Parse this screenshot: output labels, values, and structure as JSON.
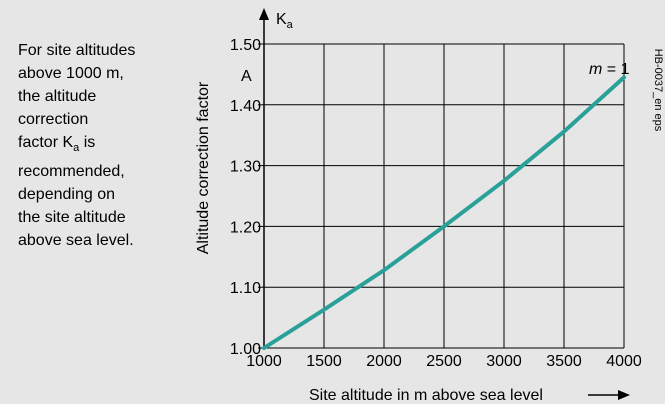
{
  "description": {
    "line1": "For site altitudes",
    "line2": "above 1000 m,",
    "line3": "the altitude",
    "line4": "correction",
    "line5_pre": "factor K",
    "line5_sub": "a",
    "line5_post": " is",
    "line6": "recommended,",
    "line7": "depending on",
    "line8": "the site altitude",
    "line9": "above sea level."
  },
  "watermark": "HB-0037_en eps",
  "colors": {
    "curve": "#2aa198",
    "grid": "#000000",
    "background": "#e6e6e6"
  },
  "chart_data": {
    "type": "line",
    "y_top_label_main": "K",
    "y_top_label_sub": "a",
    "ylabel": "Altitude correction factor",
    "xlabel": "Site altitude in m above sea level",
    "annotation_A": "A",
    "series_label_italic": "m",
    "series_label_rest": " = 1",
    "xlim": [
      1000,
      4000
    ],
    "ylim": [
      1.0,
      1.5
    ],
    "x_ticks": [
      1000,
      1500,
      2000,
      2500,
      3000,
      3500,
      4000
    ],
    "x_tick_labels": [
      "1000",
      "1500",
      "2000",
      "2500",
      "3000",
      "3500",
      "4000"
    ],
    "y_ticks": [
      1.0,
      1.1,
      1.2,
      1.3,
      1.4,
      1.5
    ],
    "y_tick_labels": [
      "1.00",
      "1.10",
      "1.20",
      "1.30",
      "1.40",
      "1.50"
    ],
    "grid": true,
    "series": [
      {
        "x": [
          1000,
          1500,
          2000,
          2500,
          3000,
          3500,
          4000
        ],
        "y": [
          1.0,
          1.063,
          1.128,
          1.2,
          1.275,
          1.356,
          1.445
        ]
      }
    ]
  }
}
